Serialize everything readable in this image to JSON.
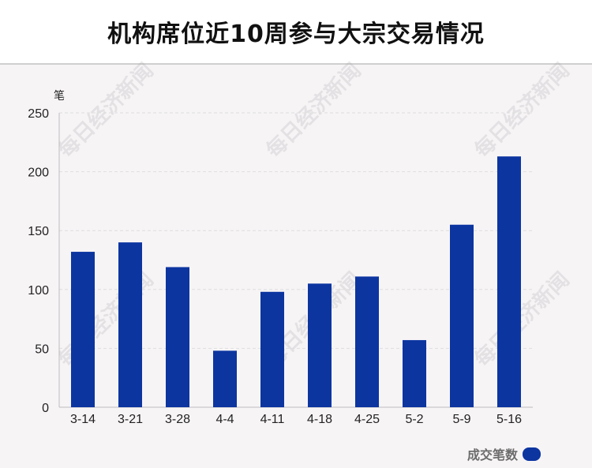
{
  "header": {
    "title": "机构席位近10周参与大宗交易情况"
  },
  "watermark_text": "每日经济新闻",
  "colors": {
    "bar": "#0c35a0",
    "grid": "#dedede",
    "axis": "#bdbdbd"
  },
  "chart_data": {
    "type": "bar",
    "title": "机构席位近10周参与大宗交易情况",
    "xlabel": "",
    "ylabel": "笔",
    "ylim": [
      0,
      250
    ],
    "yticks": [
      "0",
      "50",
      "100",
      "150",
      "200",
      "250"
    ],
    "categories": [
      "3-14",
      "3-21",
      "3-28",
      "4-4",
      "4-11",
      "4-18",
      "4-25",
      "5-2",
      "5-9",
      "5-16"
    ],
    "series": [
      {
        "name": "成交笔数",
        "values": [
          132,
          140,
          119,
          48,
          98,
          105,
          111,
          57,
          155,
          213
        ]
      }
    ],
    "grid": true,
    "legend": "bottom-right"
  }
}
